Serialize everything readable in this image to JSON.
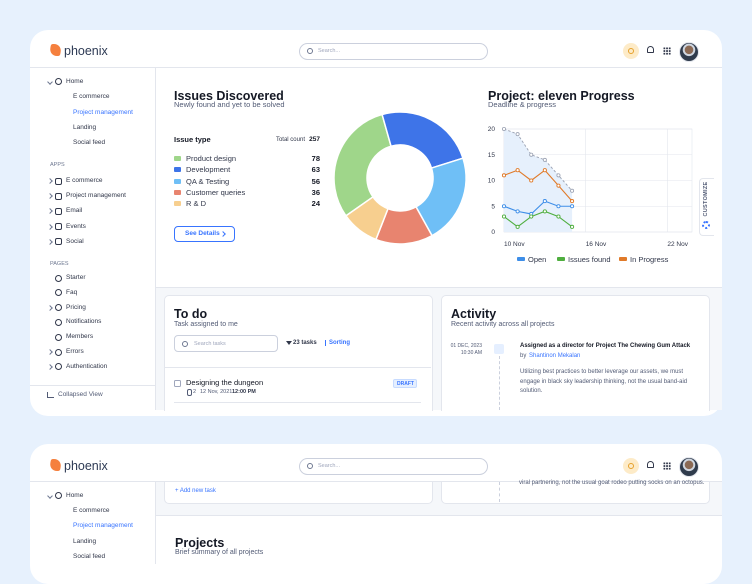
{
  "top": {
    "header": {
      "logo": "phoenix",
      "search": "Search..."
    },
    "sidebar": {
      "home": "Home",
      "home_items": [
        "E commerce",
        "Project management",
        "Landing",
        "Social feed"
      ],
      "apps_label": "APPS",
      "apps": [
        "E commerce",
        "Project management",
        "Email",
        "Events",
        "Social"
      ],
      "pages_label": "PAGES",
      "pages": [
        "Starter",
        "Faq",
        "Pricing",
        "Notifications",
        "Members",
        "Errors",
        "Authentication"
      ],
      "collapse": "Collapsed View"
    },
    "issues": {
      "type": "pie",
      "title": "Issues Discovered",
      "subtitle": "Newly found and yet to be solved",
      "column": "Issue type",
      "total_label": "Total count",
      "total": 257,
      "categories": [
        "Product design",
        "Development",
        "QA & Testing",
        "Customer queries",
        "R & D"
      ],
      "values": [
        78,
        63,
        56,
        36,
        24
      ],
      "colors": [
        "#9fd68a",
        "#3e74e8",
        "#6fbff6",
        "#e8846f",
        "#f7cf8f"
      ],
      "button": "See Details"
    },
    "progress": {
      "type": "line",
      "title": "Project: eleven Progress",
      "subtitle": "Deadline & progress",
      "x": [
        10,
        11,
        12,
        13,
        14,
        15
      ],
      "xlim": [
        10,
        23
      ],
      "xticks": [
        {
          "value": 10,
          "label": "10 Nov"
        },
        {
          "value": 16,
          "label": "16 Nov"
        },
        {
          "value": 22,
          "label": "22 Nov"
        }
      ],
      "ylim": [
        0,
        20
      ],
      "yticks": [
        0,
        5,
        10,
        15,
        20
      ],
      "series": [
        {
          "name": "Open",
          "color": "#3e8ee8",
          "values": [
            5,
            4,
            3.5,
            6,
            5,
            5
          ]
        },
        {
          "name": "Issues found",
          "color": "#4fae3f",
          "values": [
            3,
            1,
            3,
            4,
            3,
            1
          ]
        },
        {
          "name": "In Progress",
          "color": "#e07a29",
          "values": [
            11,
            12,
            10,
            12,
            9,
            6
          ]
        }
      ],
      "trend": {
        "color": "#9aa1b2",
        "area": "#e6f0fc",
        "values": [
          20,
          19,
          15,
          14,
          11,
          8
        ]
      }
    },
    "customize": "CUSTOMIZE",
    "todo": {
      "title": "To do",
      "subtitle": "Task assigned to me",
      "search": "Search tasks",
      "count": "23 tasks",
      "sorting": "Sorting",
      "tasks": [
        {
          "name": "Designing the dungeon",
          "badge": "DRAFT",
          "attachments": 2,
          "date": "12 Nov, 2021",
          "time": "12:00 PM"
        }
      ]
    },
    "activity": {
      "title": "Activity",
      "subtitle": "Recent activity across all projects",
      "items": [
        {
          "date": "01 DEC, 2023",
          "time": "10:30 AM",
          "title": "Assigned as a director for Project The Chewing Gum Attack",
          "by": "by",
          "author": "Shantinon Mekalan",
          "text": "Utilizing best practices to better leverage our assets, we must engage in black sky leadership thinking, not the usual band-aid solution."
        }
      ]
    }
  },
  "bottom": {
    "header": {
      "logo": "phoenix",
      "search": "Search..."
    },
    "sidebar": {
      "home": "Home",
      "home_items": [
        "E commerce",
        "Project management",
        "Landing",
        "Social feed"
      ]
    },
    "add_task": "+ Add new task",
    "activity_tail": "viral partnering, not the usual goat rodeo putting socks on an octopus.",
    "projects": {
      "title": "Projects",
      "subtitle": "Brief summary of all projects"
    }
  }
}
